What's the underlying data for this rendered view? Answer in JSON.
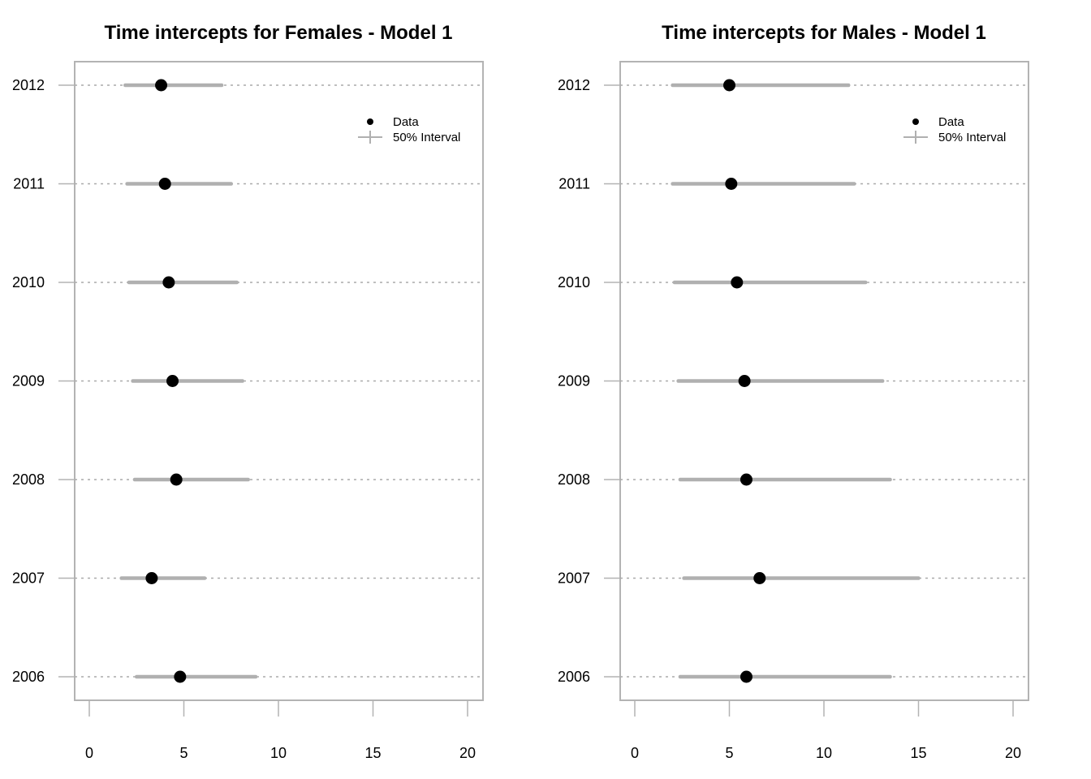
{
  "chart_data": [
    {
      "type": "dot-interval",
      "title": "Time intercepts for Females - Model 1",
      "xlim": [
        0,
        20
      ],
      "xticks": [
        0,
        5,
        10,
        15,
        20
      ],
      "categories": [
        "2012",
        "2011",
        "2010",
        "2009",
        "2008",
        "2007",
        "2006"
      ],
      "values": [
        3.8,
        4.0,
        4.2,
        4.4,
        4.6,
        3.3,
        4.8
      ],
      "interval_low": [
        1.9,
        2.0,
        2.1,
        2.3,
        2.4,
        1.7,
        2.5
      ],
      "interval_high": [
        7.0,
        7.5,
        7.8,
        8.1,
        8.4,
        6.1,
        8.8
      ],
      "legend": {
        "items": [
          "Data",
          "50% Interval"
        ],
        "placement": "top-right"
      },
      "grid": "horizontal dotted",
      "colors": {
        "point": "#000000",
        "interval": "#b0b0b0",
        "grid": "#aaaaaa",
        "frame": "#b3b3b3"
      }
    },
    {
      "type": "dot-interval",
      "title": "Time intercepts for Males - Model 1",
      "xlim": [
        0,
        20
      ],
      "xticks": [
        0,
        5,
        10,
        15,
        20
      ],
      "categories": [
        "2012",
        "2011",
        "2010",
        "2009",
        "2008",
        "2007",
        "2006"
      ],
      "values": [
        5.0,
        5.1,
        5.4,
        5.8,
        5.9,
        6.6,
        5.9
      ],
      "interval_low": [
        2.0,
        2.0,
        2.1,
        2.3,
        2.4,
        2.6,
        2.4
      ],
      "interval_high": [
        11.3,
        11.6,
        12.2,
        13.1,
        13.5,
        15.0,
        13.5
      ],
      "legend": {
        "items": [
          "Data",
          "50% Interval"
        ],
        "placement": "top-right"
      },
      "grid": "horizontal dotted",
      "colors": {
        "point": "#000000",
        "interval": "#b0b0b0",
        "grid": "#aaaaaa",
        "frame": "#b3b3b3"
      }
    }
  ]
}
